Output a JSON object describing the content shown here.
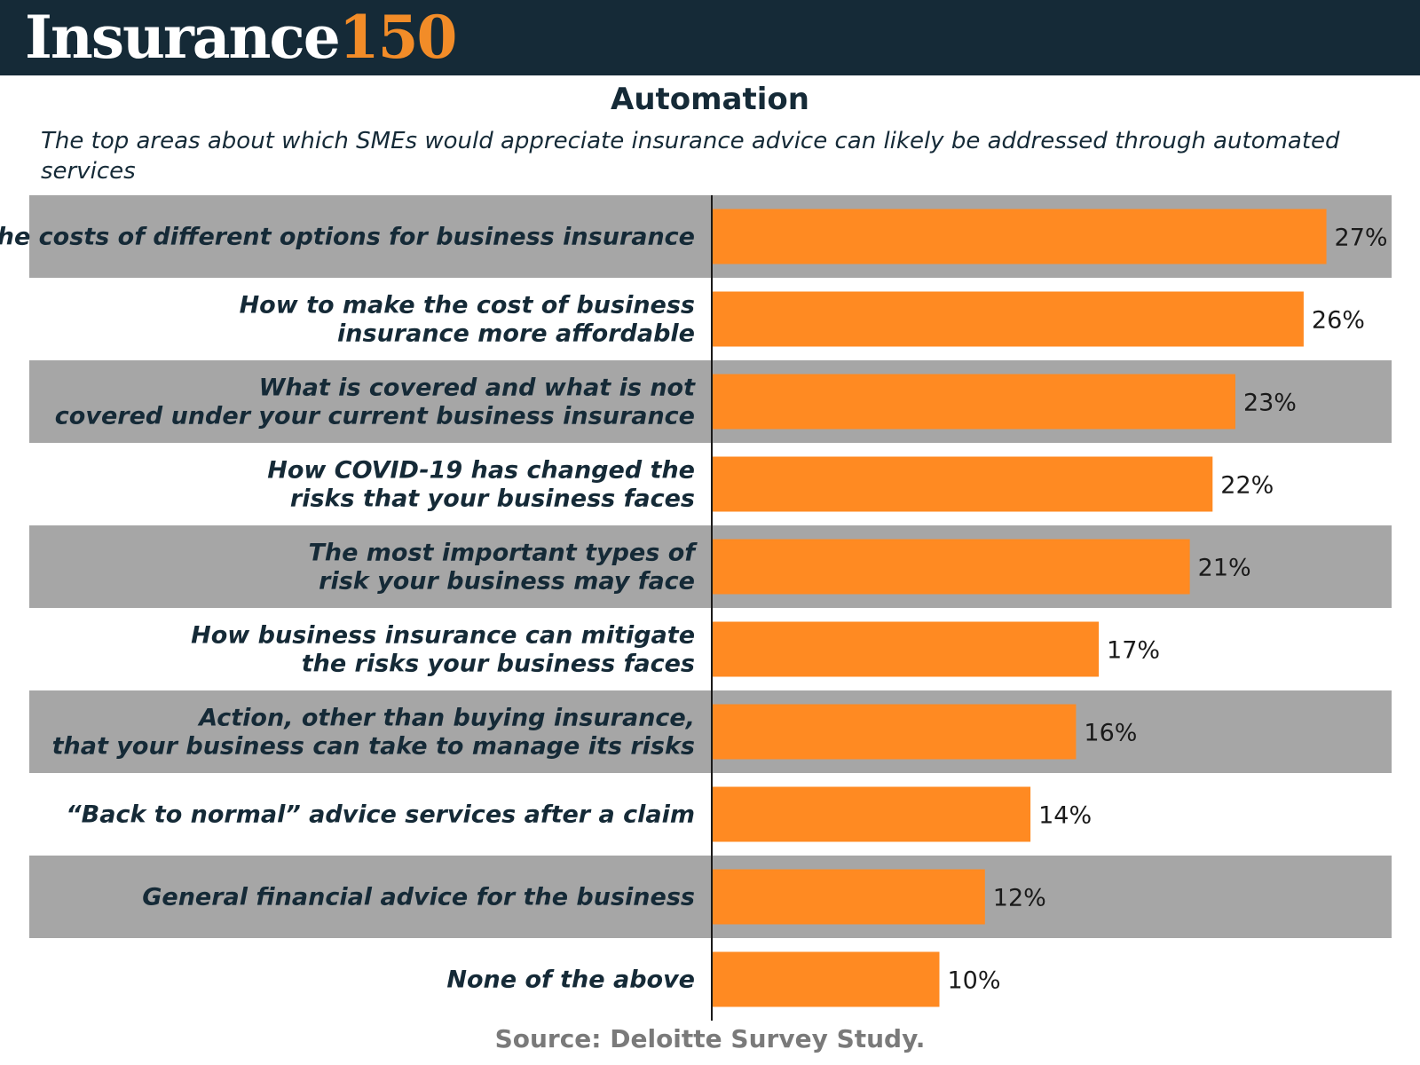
{
  "header": {
    "brand_text": "Insurance",
    "brand_number": "150"
  },
  "title": "Automation",
  "subtitle": "The top areas about which SMEs would appreciate insurance advice can likely be addressed through automated services",
  "source": "Source: Deloitte Survey Study.",
  "colors": {
    "header_bg": "#152a37",
    "brand_accent": "#f28c28",
    "bar": "#ff8a22",
    "band": "#a6a6a6",
    "label_text": "#152a37"
  },
  "chart_data": {
    "type": "bar",
    "orientation": "horizontal",
    "unit": "%",
    "categories": [
      [
        "The costs of different options for business insurance"
      ],
      [
        "How to make the cost of business",
        "insurance more affordable"
      ],
      [
        "What is covered and what is not",
        "covered under your current business insurance"
      ],
      [
        "How COVID-19 has changed the",
        "risks that your business faces"
      ],
      [
        "The most important types of",
        "risk your business may face"
      ],
      [
        "How business insurance can mitigate",
        "the risks your business faces"
      ],
      [
        "Action, other than buying insurance,",
        "that your business can take to manage its risks"
      ],
      [
        "“Back to normal” advice services after a claim"
      ],
      [
        "General financial advice for the business"
      ],
      [
        "None of the above"
      ]
    ],
    "values": [
      27,
      26,
      23,
      22,
      21,
      17,
      16,
      14,
      12,
      10
    ],
    "value_labels": [
      "27%",
      "26%",
      "23%",
      "22%",
      "21%",
      "17%",
      "16%",
      "14%",
      "12%",
      "10%"
    ],
    "grid": false,
    "legend": "none"
  }
}
